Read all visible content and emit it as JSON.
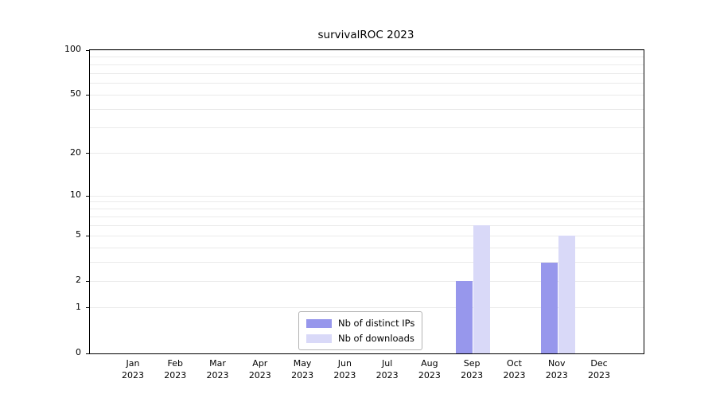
{
  "title": "survivalROC 2023",
  "chart_data": {
    "type": "bar",
    "title": "survivalROC 2023",
    "categories": [
      "Jan",
      "Feb",
      "Mar",
      "Apr",
      "May",
      "Jun",
      "Jul",
      "Aug",
      "Sep",
      "Oct",
      "Nov",
      "Dec"
    ],
    "category_year": "2023",
    "series": [
      {
        "name": "Nb of distinct IPs",
        "color": "#9797ec",
        "values": [
          0,
          0,
          0,
          0,
          0,
          0,
          0,
          0,
          2,
          0,
          3,
          0
        ]
      },
      {
        "name": "Nb of downloads",
        "color": "#d9d9f8",
        "values": [
          0,
          0,
          0,
          0,
          0,
          0,
          0,
          0,
          6,
          0,
          5,
          0
        ]
      }
    ],
    "y_scale": "log1p",
    "y_ticks": [
      0,
      1,
      2,
      5,
      10,
      20,
      50,
      100
    ],
    "y_minor_gridlines": [
      1,
      2,
      3,
      4,
      5,
      6,
      7,
      8,
      9,
      10,
      20,
      30,
      40,
      50,
      60,
      70,
      80,
      90,
      100
    ],
    "ylim": [
      0,
      100
    ],
    "xlabel": "",
    "ylabel": "",
    "grid": "horizontal",
    "legend_position": "inside-bottom-center"
  },
  "legend": {
    "items": [
      {
        "label": "Nb of distinct IPs",
        "color": "#9797ec"
      },
      {
        "label": "Nb of downloads",
        "color": "#d9d9f8"
      }
    ]
  }
}
